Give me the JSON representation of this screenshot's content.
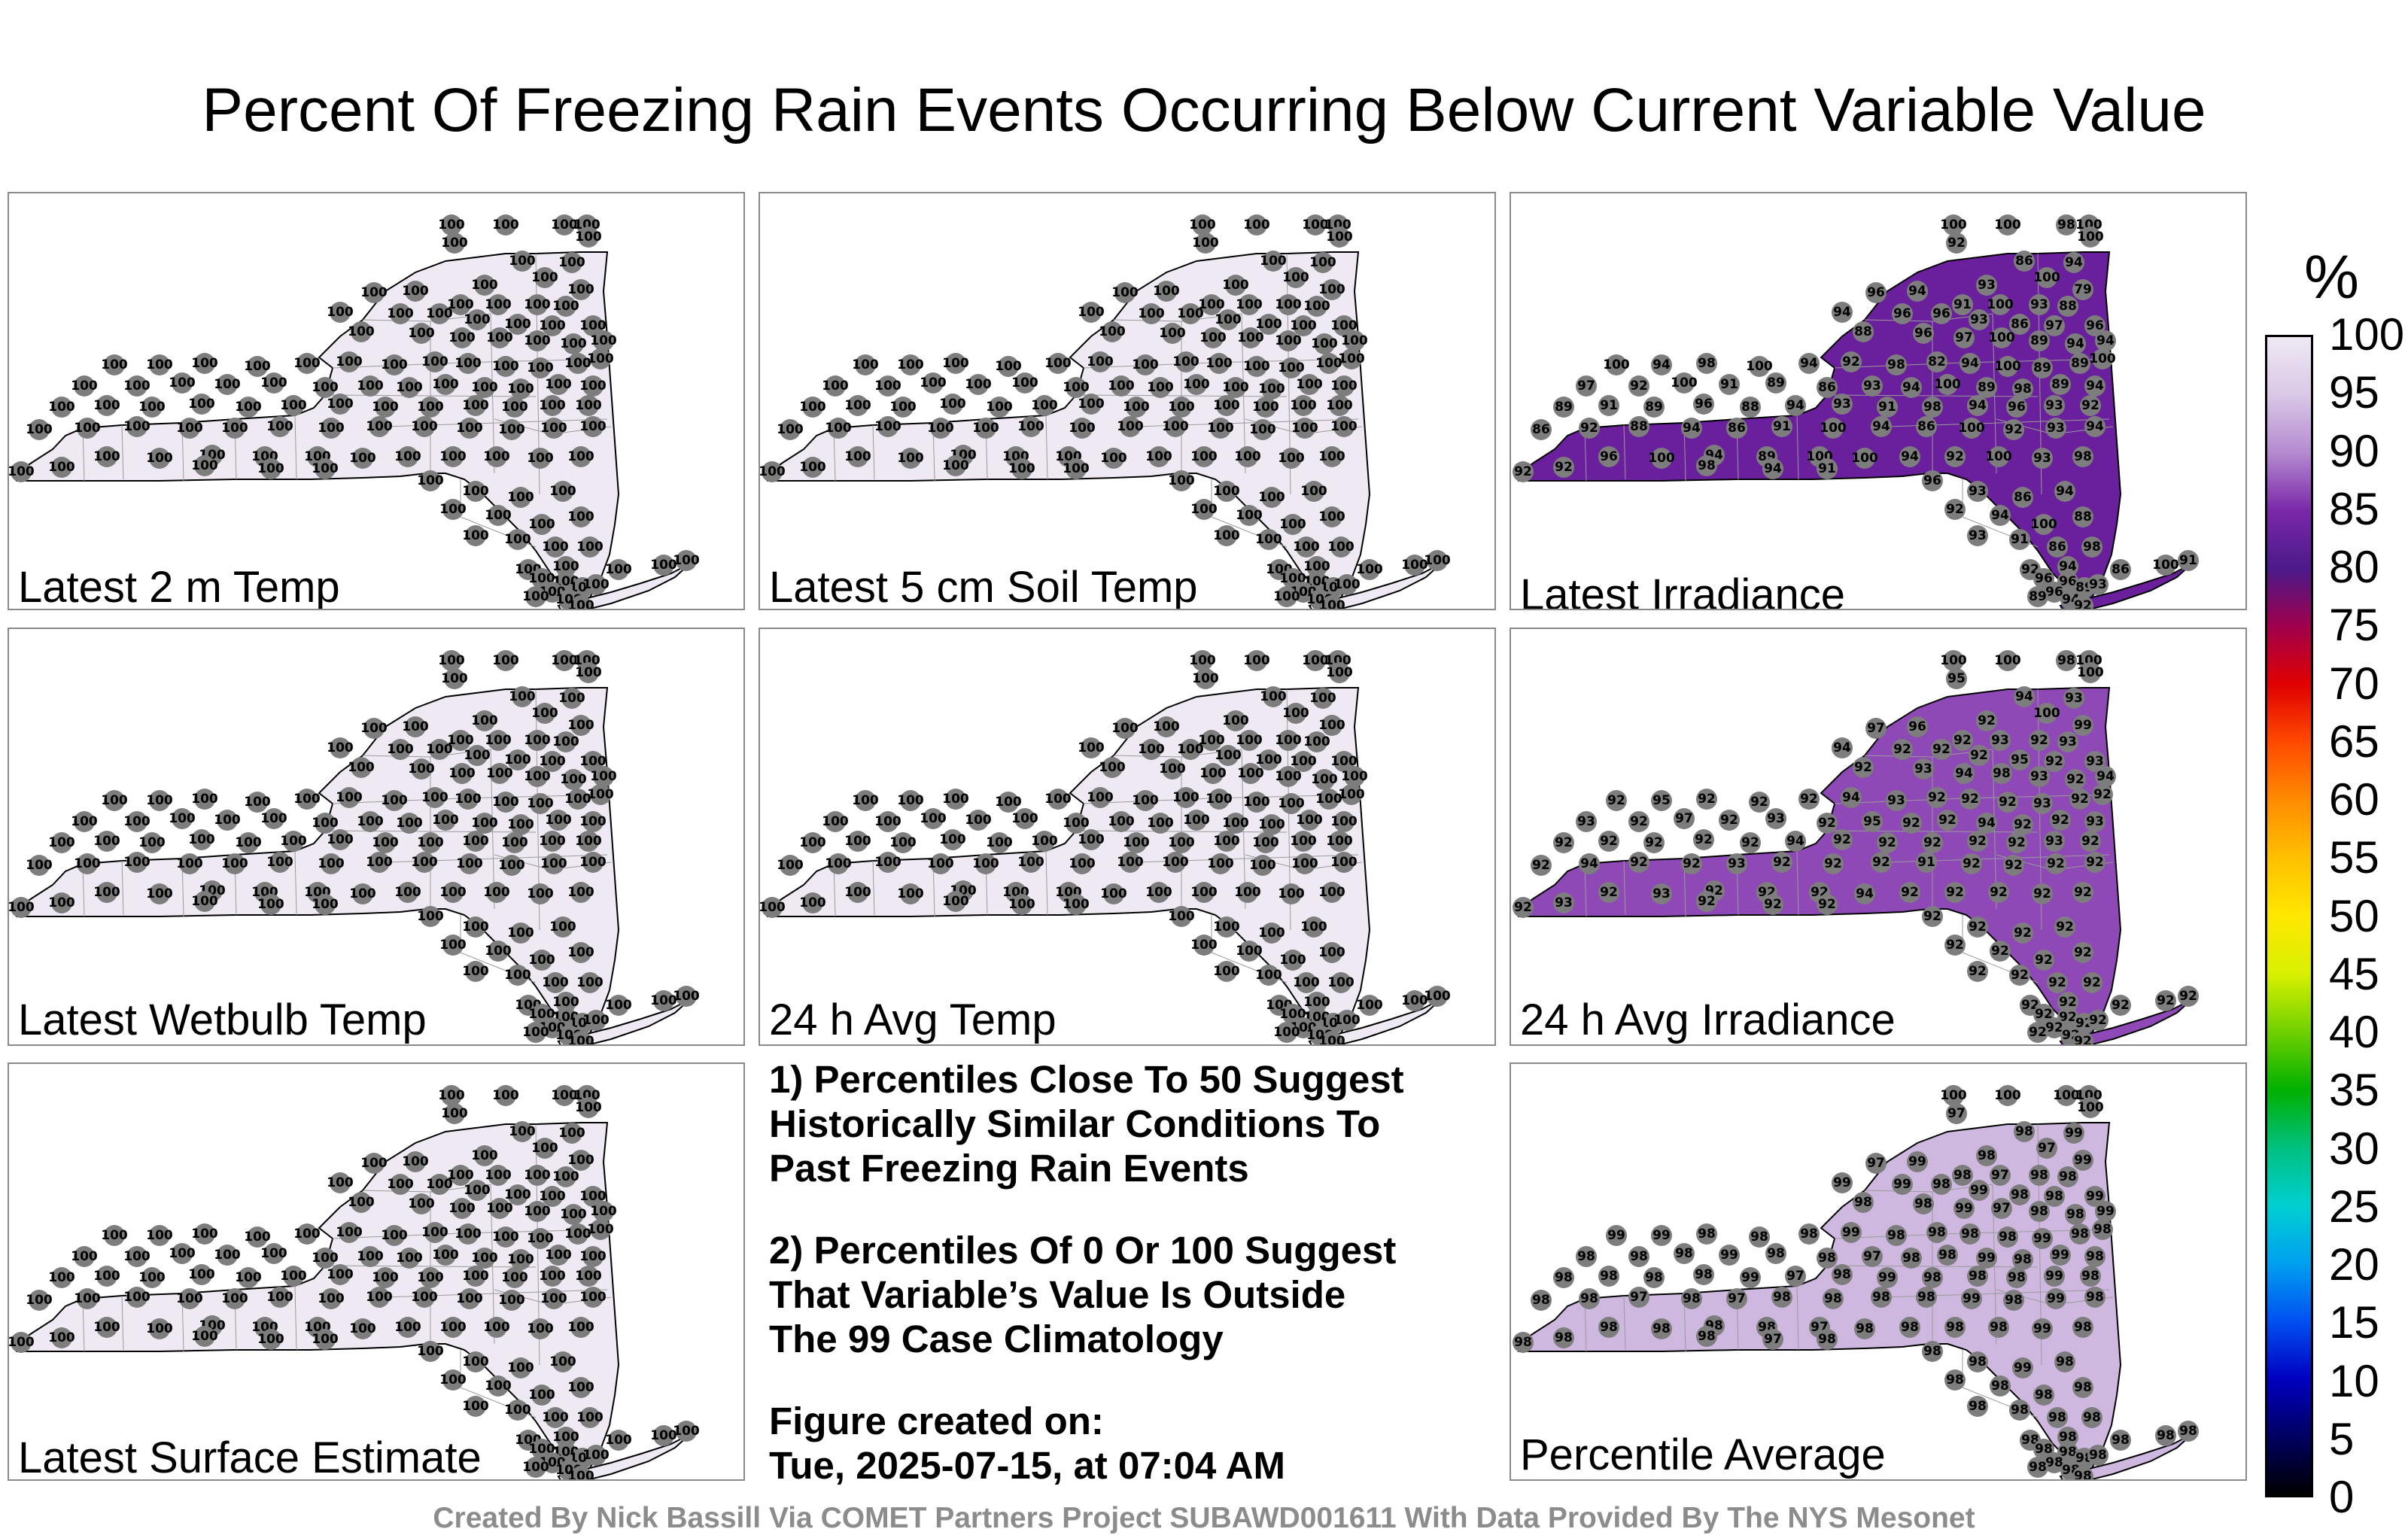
{
  "title": "Percent Of Freezing Rain Events Occurring Below Current Variable Value",
  "panels": [
    {
      "id": "latest-2m-temp",
      "label": "Latest 2 m Temp",
      "fill_color": "#efe9f3",
      "typical_value": "100",
      "values": [
        "100",
        "100",
        "100",
        "100",
        "100",
        "100",
        "100",
        "100",
        "100",
        "100",
        "100",
        "100",
        "100",
        "100",
        "100",
        "100",
        "100",
        "100",
        "100",
        "100",
        "100",
        "100",
        "100",
        "100",
        "100",
        "100",
        "100",
        "100",
        "100",
        "100",
        "100",
        "100",
        "100",
        "100",
        "100",
        "100",
        "100",
        "100",
        "100",
        "100",
        "100",
        "100",
        "100",
        "100",
        "100",
        "100",
        "100",
        "100",
        "100",
        "100",
        "100",
        "100",
        "100",
        "100",
        "100",
        "100",
        "100",
        "100",
        "100",
        "100",
        "100",
        "100",
        "100",
        "100",
        "100",
        "100",
        "100",
        "100",
        "100",
        "100",
        "100",
        "100",
        "100",
        "100",
        "100",
        "100",
        "100",
        "100",
        "100",
        "100",
        "100",
        "100",
        "100",
        "100",
        "100",
        "100",
        "100",
        "100",
        "100",
        "100",
        "100",
        "100",
        "100",
        "100",
        "100",
        "100",
        "100",
        "100",
        "100",
        "100",
        "100",
        "100",
        "100",
        "100",
        "100",
        "100",
        "100",
        "100",
        "100",
        "100",
        "100",
        "100",
        "100",
        "100",
        "100",
        "100",
        "100",
        "100",
        "100",
        "100",
        "100",
        "100",
        "100",
        "100",
        "100",
        "100",
        "100"
      ]
    },
    {
      "id": "latest-5cm-soil-temp",
      "label": "Latest 5 cm Soil Temp",
      "fill_color": "#efe9f3",
      "typical_value": "100",
      "values": [
        "100",
        "100",
        "100",
        "100",
        "100",
        "100",
        "100",
        "100",
        "100",
        "100",
        "100",
        "100",
        "100",
        "100",
        "100",
        "100",
        "100",
        "100",
        "100",
        "100",
        "100",
        "100",
        "100",
        "100",
        "100",
        "100",
        "100",
        "100",
        "100",
        "100",
        "100",
        "100",
        "100",
        "100",
        "100",
        "100",
        "100",
        "100",
        "100",
        "100",
        "100",
        "100",
        "100",
        "100",
        "100",
        "100",
        "100",
        "100",
        "100",
        "100",
        "100",
        "100",
        "100",
        "100",
        "100",
        "100",
        "100",
        "100",
        "100",
        "100",
        "100",
        "100",
        "100",
        "100",
        "100",
        "100",
        "100",
        "100",
        "100",
        "100",
        "100",
        "100",
        "100",
        "100",
        "100",
        "100",
        "100",
        "100",
        "100",
        "100",
        "100",
        "100",
        "100",
        "100",
        "100",
        "100",
        "100",
        "100",
        "100",
        "100",
        "100",
        "100",
        "100",
        "100",
        "100",
        "100",
        "100",
        "100",
        "100",
        "100",
        "100",
        "100",
        "100",
        "100",
        "100",
        "100",
        "100",
        "100",
        "100",
        "100",
        "100",
        "100",
        "100",
        "100",
        "100",
        "100",
        "100",
        "100",
        "100",
        "100",
        "100",
        "100",
        "100",
        "100",
        "100",
        "100",
        "100"
      ]
    },
    {
      "id": "latest-irradiance",
      "label": "Latest Irradiance",
      "fill_color": "#6a1f9c",
      "typical_value": "94",
      "values": [
        "100",
        "100",
        "98",
        "100",
        "92",
        "100",
        "86",
        "94",
        "100",
        "93",
        "96",
        "94",
        "79",
        "91",
        "100",
        "93",
        "88",
        "94",
        "96",
        "96",
        "93",
        "86",
        "97",
        "96",
        "88",
        "96",
        "97",
        "100",
        "89",
        "94",
        "94",
        "100",
        "94",
        "98",
        "100",
        "94",
        "92",
        "98",
        "82",
        "94",
        "100",
        "89",
        "89",
        "100",
        "97",
        "92",
        "100",
        "91",
        "89",
        "86",
        "93",
        "94",
        "100",
        "89",
        "98",
        "89",
        "94",
        "89",
        "91",
        "89",
        "96",
        "88",
        "94",
        "93",
        "91",
        "98",
        "94",
        "96",
        "93",
        "92",
        "86",
        "92",
        "88",
        "94",
        "86",
        "91",
        "100",
        "94",
        "86",
        "100",
        "92",
        "93",
        "94",
        "96",
        "100",
        "94",
        "89",
        "100",
        "100",
        "94",
        "92",
        "100",
        "93",
        "98",
        "92",
        "92",
        "98",
        "94",
        "91",
        "96",
        "93",
        "86",
        "94",
        "92",
        "94",
        "100",
        "88",
        "93",
        "91",
        "86",
        "98",
        "92",
        "94",
        "96",
        "96",
        "89",
        "96",
        "94",
        "89",
        "86",
        "100",
        "91",
        "93",
        "92",
        "86",
        "100",
        "93"
      ]
    },
    {
      "id": "latest-wetbulb-temp",
      "label": "Latest Wetbulb Temp",
      "fill_color": "#efe9f3",
      "typical_value": "100",
      "values": [
        "100",
        "100",
        "100",
        "100",
        "100",
        "100",
        "100",
        "100",
        "100",
        "100",
        "100",
        "100",
        "100",
        "100",
        "100",
        "100",
        "100",
        "100",
        "100",
        "100",
        "100",
        "100",
        "100",
        "100",
        "100",
        "100",
        "100",
        "100",
        "100",
        "100",
        "100",
        "100",
        "100",
        "100",
        "100",
        "100",
        "100",
        "100",
        "100",
        "100",
        "100",
        "100",
        "100",
        "100",
        "100",
        "100",
        "100",
        "100",
        "100",
        "100",
        "100",
        "100",
        "100",
        "100",
        "100",
        "100",
        "100",
        "100",
        "100",
        "100",
        "100",
        "100",
        "100",
        "100",
        "100",
        "100",
        "100",
        "100",
        "100",
        "100",
        "100",
        "100",
        "100",
        "100",
        "100",
        "100",
        "100",
        "100",
        "100",
        "100",
        "100",
        "100",
        "100",
        "100",
        "100",
        "100",
        "100",
        "100",
        "100",
        "100",
        "100",
        "100",
        "100",
        "100",
        "100",
        "100",
        "100",
        "100",
        "100",
        "100",
        "100",
        "100",
        "100",
        "100",
        "100",
        "100",
        "100",
        "100",
        "100",
        "100",
        "100",
        "100",
        "100",
        "100",
        "100",
        "100",
        "100",
        "100",
        "100",
        "100",
        "100",
        "100",
        "100",
        "100",
        "100",
        "100",
        "100"
      ]
    },
    {
      "id": "avg-temp-24h",
      "label": "24 h Avg Temp",
      "fill_color": "#efe9f3",
      "typical_value": "100",
      "values": [
        "100",
        "100",
        "100",
        "100",
        "100",
        "100",
        "100",
        "100",
        "100",
        "100",
        "100",
        "100",
        "100",
        "100",
        "100",
        "100",
        "100",
        "100",
        "100",
        "100",
        "100",
        "100",
        "100",
        "100",
        "100",
        "100",
        "100",
        "100",
        "100",
        "100",
        "100",
        "100",
        "100",
        "100",
        "100",
        "100",
        "100",
        "100",
        "100",
        "100",
        "100",
        "100",
        "100",
        "100",
        "100",
        "100",
        "100",
        "100",
        "100",
        "100",
        "100",
        "100",
        "100",
        "100",
        "100",
        "100",
        "100",
        "100",
        "100",
        "100",
        "100",
        "100",
        "100",
        "100",
        "100",
        "100",
        "100",
        "100",
        "100",
        "100",
        "100",
        "100",
        "100",
        "100",
        "100",
        "100",
        "100",
        "100",
        "100",
        "100",
        "100",
        "100",
        "100",
        "100",
        "100",
        "100",
        "100",
        "100",
        "100",
        "100",
        "100",
        "100",
        "100",
        "100",
        "100",
        "100",
        "100",
        "100",
        "100",
        "100",
        "100",
        "100",
        "100",
        "100",
        "100",
        "100",
        "100",
        "100",
        "100",
        "100",
        "100",
        "100",
        "100",
        "100",
        "100",
        "100",
        "100",
        "100",
        "100",
        "100",
        "100",
        "100",
        "100",
        "100",
        "100",
        "100",
        "100"
      ]
    },
    {
      "id": "avg-irradiance-24h",
      "label": "24 h Avg Irradiance",
      "fill_color": "#8e49b6",
      "typical_value": "92",
      "values": [
        "100",
        "100",
        "98",
        "100",
        "95",
        "100",
        "94",
        "93",
        "100",
        "92",
        "97",
        "96",
        "99",
        "92",
        "93",
        "92",
        "93",
        "94",
        "92",
        "92",
        "92",
        "95",
        "92",
        "93",
        "92",
        "93",
        "94",
        "98",
        "93",
        "92",
        "94",
        "92",
        "95",
        "92",
        "92",
        "92",
        "94",
        "93",
        "92",
        "92",
        "92",
        "93",
        "92",
        "92",
        "93",
        "92",
        "97",
        "92",
        "93",
        "92",
        "95",
        "92",
        "92",
        "94",
        "92",
        "92",
        "93",
        "92",
        "92",
        "92",
        "92",
        "92",
        "94",
        "92",
        "92",
        "92",
        "92",
        "92",
        "93",
        "92",
        "92",
        "94",
        "92",
        "92",
        "93",
        "92",
        "92",
        "92",
        "91",
        "92",
        "92",
        "92",
        "92",
        "92",
        "93",
        "92",
        "92",
        "92",
        "94",
        "92",
        "92",
        "92",
        "92",
        "92",
        "92",
        "93",
        "92",
        "92",
        "92",
        "92",
        "92",
        "92",
        "92",
        "92",
        "92",
        "92",
        "92",
        "92",
        "92",
        "92",
        "92",
        "92",
        "92",
        "92",
        "92",
        "92",
        "92",
        "92",
        "92",
        "92",
        "92",
        "92",
        "92",
        "92",
        "92",
        "92",
        "92"
      ]
    },
    {
      "id": "latest-surface-estimate",
      "label": "Latest Surface Estimate",
      "fill_color": "#efe9f3",
      "typical_value": "100",
      "values": [
        "100",
        "100",
        "100",
        "100",
        "100",
        "100",
        "100",
        "100",
        "100",
        "100",
        "100",
        "100",
        "100",
        "100",
        "100",
        "100",
        "100",
        "100",
        "100",
        "100",
        "100",
        "100",
        "100",
        "100",
        "100",
        "100",
        "100",
        "100",
        "100",
        "100",
        "100",
        "100",
        "100",
        "100",
        "100",
        "100",
        "100",
        "100",
        "100",
        "100",
        "100",
        "100",
        "100",
        "100",
        "100",
        "100",
        "100",
        "100",
        "100",
        "100",
        "100",
        "100",
        "100",
        "100",
        "100",
        "100",
        "100",
        "100",
        "100",
        "100",
        "100",
        "100",
        "100",
        "100",
        "100",
        "100",
        "100",
        "100",
        "100",
        "100",
        "100",
        "100",
        "100",
        "100",
        "100",
        "100",
        "100",
        "100",
        "100",
        "100",
        "100",
        "100",
        "100",
        "100",
        "100",
        "100",
        "100",
        "100",
        "100",
        "100",
        "100",
        "100",
        "100",
        "100",
        "100",
        "100",
        "100",
        "100",
        "100",
        "100",
        "100",
        "100",
        "100",
        "100",
        "100",
        "100",
        "100",
        "100",
        "100",
        "100",
        "100",
        "100",
        "100",
        "100",
        "100",
        "100",
        "100",
        "100",
        "100",
        "100",
        "100",
        "100",
        "100",
        "100",
        "100",
        "100",
        "100"
      ]
    },
    {
      "id": "percentile-average",
      "label": "Percentile Average",
      "fill_color": "#cfb8e0",
      "typical_value": "98",
      "values": [
        "100",
        "100",
        "100",
        "100",
        "97",
        "100",
        "98",
        "99",
        "97",
        "98",
        "97",
        "99",
        "99",
        "98",
        "97",
        "98",
        "98",
        "99",
        "99",
        "98",
        "99",
        "98",
        "98",
        "99",
        "98",
        "98",
        "99",
        "97",
        "98",
        "98",
        "99",
        "99",
        "99",
        "98",
        "98",
        "98",
        "99",
        "98",
        "98",
        "98",
        "98",
        "99",
        "98",
        "98",
        "98",
        "98",
        "98",
        "99",
        "98",
        "98",
        "97",
        "98",
        "98",
        "99",
        "98",
        "99",
        "98",
        "98",
        "98",
        "98",
        "98",
        "99",
        "97",
        "98",
        "99",
        "98",
        "98",
        "98",
        "99",
        "98",
        "98",
        "98",
        "97",
        "98",
        "97",
        "98",
        "98",
        "98",
        "98",
        "99",
        "98",
        "99",
        "98",
        "98",
        "98",
        "98",
        "98",
        "97",
        "98",
        "98",
        "98",
        "98",
        "99",
        "98",
        "98",
        "98",
        "98",
        "97",
        "98",
        "98",
        "98",
        "99",
        "98",
        "98",
        "98",
        "98",
        "98",
        "98",
        "98",
        "98",
        "98",
        "98",
        "98",
        "98",
        "98",
        "98",
        "98",
        "98",
        "98",
        "98",
        "98",
        "98",
        "98",
        "98",
        "98",
        "98",
        "96"
      ]
    }
  ],
  "notes": {
    "line1": "1) Percentiles Close To 50 Suggest",
    "line2": "Historically Similar Conditions To",
    "line3": "Past Freezing Rain Events",
    "line4": "2) Percentiles Of 0 Or 100 Suggest",
    "line5": "That Variable’s Value Is Outside",
    "line6": "The 99 Case Climatology",
    "line7": "Figure created on:",
    "line8": "Tue, 2025-07-15, at 07:04 AM"
  },
  "colorbar": {
    "unit": "%",
    "ticks": [
      "100",
      "95",
      "90",
      "85",
      "80",
      "75",
      "70",
      "65",
      "60",
      "55",
      "50",
      "45",
      "40",
      "35",
      "30",
      "25",
      "20",
      "15",
      "10",
      "5",
      "0"
    ],
    "colors": [
      "#efe9f3",
      "#d9c8e6",
      "#b48ad0",
      "#7a28a8",
      "#4b1a8a",
      "#a0004c",
      "#e00000",
      "#ff4a00",
      "#ff8c00",
      "#ffc000",
      "#ffe800",
      "#d8f000",
      "#70d000",
      "#00b000",
      "#00c080",
      "#00d0d0",
      "#00a0f0",
      "#0050f0",
      "#0000c0",
      "#000060",
      "#000000"
    ]
  },
  "footer": "Created By Nick Bassill Via COMET Partners Project SUBAWD001611 With Data Provided By The NYS Mesonet"
}
